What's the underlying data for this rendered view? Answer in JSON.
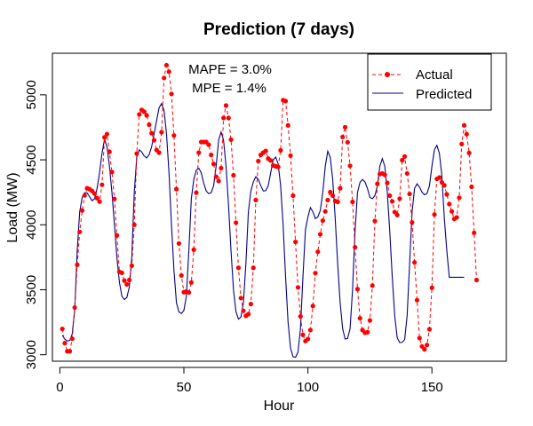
{
  "chart_data": {
    "type": "line",
    "title": "Prediction (7 days)",
    "xlabel": "Hour",
    "ylabel": "Load (MW)",
    "xlim": [
      -3,
      180
    ],
    "ylim": [
      2950,
      5320
    ],
    "xticks": [
      0,
      50,
      100,
      150
    ],
    "yticks": [
      3000,
      3500,
      4000,
      4500,
      5000
    ],
    "xtick_labels": [
      "0",
      "50",
      "100",
      "150"
    ],
    "ytick_labels": [
      "3000",
      "3500",
      "4000",
      "4500",
      "5000"
    ],
    "grid": false,
    "legend": {
      "position": "top-right",
      "entries": [
        {
          "label": "Actual",
          "color": "#ff0000",
          "style": "dashed-with-points"
        },
        {
          "label": "Predicted",
          "color": "#00008b",
          "style": "solid"
        }
      ]
    },
    "annotations": [
      "MAPE = 3.0%",
      "MPE = 1.4%"
    ],
    "colors": {
      "actual": "#ff0000",
      "predicted": "#00008b"
    },
    "x_start": 1,
    "series": [
      {
        "name": "Actual",
        "values": [
          3199,
          3089,
          3027,
          3027,
          3123,
          3363,
          3692,
          3945,
          4110,
          4226,
          4281,
          4274,
          4260,
          4240,
          4205,
          4178,
          4308,
          4673,
          4698,
          4561,
          4406,
          4199,
          3918,
          3637,
          3630,
          3570,
          3541,
          3575,
          3685,
          4000,
          4548,
          4849,
          4884,
          4870,
          4842,
          4770,
          4705,
          4651,
          4575,
          4555,
          4712,
          5130,
          5228,
          5178,
          5007,
          4687,
          4274,
          3856,
          3610,
          3481,
          3486,
          3479,
          3556,
          3808,
          4247,
          4555,
          4637,
          4637,
          4637,
          4616,
          4537,
          4468,
          4370,
          4336,
          4436,
          4822,
          4918,
          4822,
          4655,
          4381,
          4016,
          3669,
          3436,
          3338,
          3299,
          3312,
          3390,
          3669,
          4190,
          4490,
          4538,
          4555,
          4568,
          4509,
          4495,
          4457,
          4450,
          4445,
          4573,
          4959,
          4952,
          4765,
          4532,
          4224,
          3868,
          3518,
          3295,
          3153,
          3105,
          3121,
          3190,
          3375,
          3628,
          3792,
          3927,
          4032,
          4103,
          4190,
          4251,
          4224,
          4183,
          4176,
          4281,
          4676,
          4751,
          4635,
          4454,
          4176,
          3827,
          3505,
          3281,
          3190,
          3169,
          3173,
          3264,
          3532,
          4029,
          4315,
          4390,
          4395,
          4384,
          4322,
          4224,
          4180,
          4098,
          4075,
          4201,
          4497,
          4525,
          4395,
          4237,
          4018,
          3710,
          3420,
          3128,
          3064,
          3041,
          3075,
          3196,
          3515,
          4079,
          4353,
          4364,
          4326,
          4303,
          4234,
          4159,
          4103,
          4045,
          4057,
          4208,
          4621,
          4765,
          4697,
          4553,
          4292,
          3938,
          3575
        ]
      },
      {
        "name": "Predicted",
        "values": [
          3150,
          3120,
          3105,
          3110,
          3160,
          3350,
          3800,
          4100,
          4210,
          4247,
          4245,
          4215,
          4185,
          4200,
          4280,
          4400,
          4550,
          4658,
          4600,
          4450,
          4250,
          4000,
          3750,
          3560,
          3450,
          3425,
          3440,
          3520,
          3750,
          4250,
          4520,
          4577,
          4560,
          4530,
          4514,
          4540,
          4600,
          4700,
          4800,
          4900,
          4932,
          4880,
          4700,
          4400,
          4000,
          3650,
          3400,
          3330,
          3317,
          3340,
          3450,
          3800,
          4200,
          4349,
          4420,
          4436,
          4400,
          4320,
          4260,
          4240,
          4247,
          4300,
          4450,
          4650,
          4714,
          4650,
          4450,
          4150,
          3800,
          3500,
          3330,
          3274,
          3290,
          3400,
          3700,
          4100,
          4260,
          4330,
          4370,
          4350,
          4300,
          4260,
          4262,
          4300,
          4400,
          4500,
          4521,
          4470,
          4300,
          4000,
          3600,
          3250,
          3050,
          2985,
          2980,
          3020,
          3200,
          3600,
          3960,
          4060,
          4132,
          4100,
          4048,
          4060,
          4110,
          4250,
          4450,
          4566,
          4520,
          4350,
          4050,
          3700,
          3400,
          3200,
          3121,
          3125,
          3200,
          3500,
          3950,
          4250,
          4326,
          4349,
          4330,
          4280,
          4210,
          4201,
          4224,
          4300,
          4450,
          4509,
          4450,
          4250,
          3950,
          3600,
          3300,
          3130,
          3094,
          3095,
          3116,
          3300,
          3700,
          4098,
          4280,
          4315,
          4290,
          4250,
          4231,
          4240,
          4300,
          4450,
          4577,
          4611,
          4550,
          4380,
          4050,
          3800,
          3596,
          3596,
          3596,
          3596,
          3596,
          3596,
          3596
        ]
      }
    ]
  }
}
